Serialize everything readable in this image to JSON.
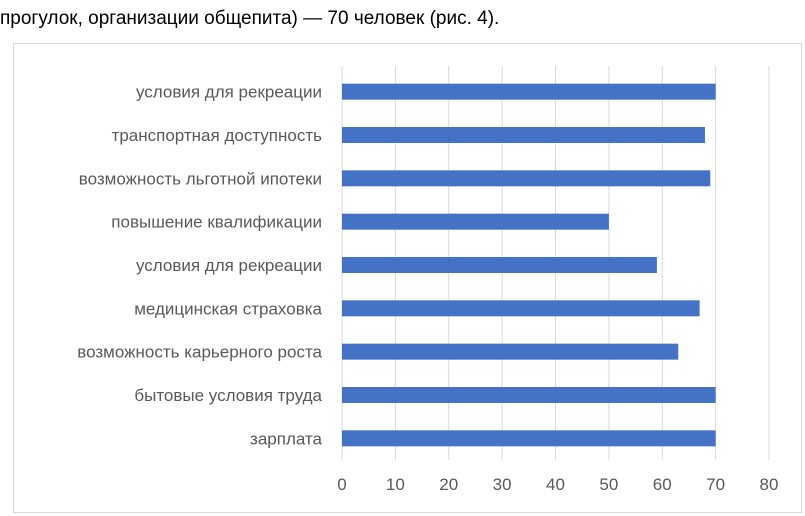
{
  "caption": "прогулок, организации общепита) — 70 человек (рис. 4).",
  "chart_data": {
    "type": "bar",
    "orientation": "horizontal",
    "categories": [
      "условия для рекреации",
      "транспортная доступность",
      "возможность льготной ипотеки",
      "повышение квалификации",
      "условия для рекреации",
      "медицинская страховка",
      "возможность карьерного роста",
      "бытовые условия труда",
      "зарплата"
    ],
    "values": [
      70,
      68,
      69,
      50,
      59,
      67,
      63,
      70,
      70
    ],
    "xlim": [
      0,
      80
    ],
    "xticks": [
      0,
      10,
      20,
      30,
      40,
      50,
      60,
      70,
      80
    ],
    "grid": true,
    "bar_color": "#4472c4",
    "grid_color": "#d9d9d9",
    "label_color": "#595959"
  }
}
